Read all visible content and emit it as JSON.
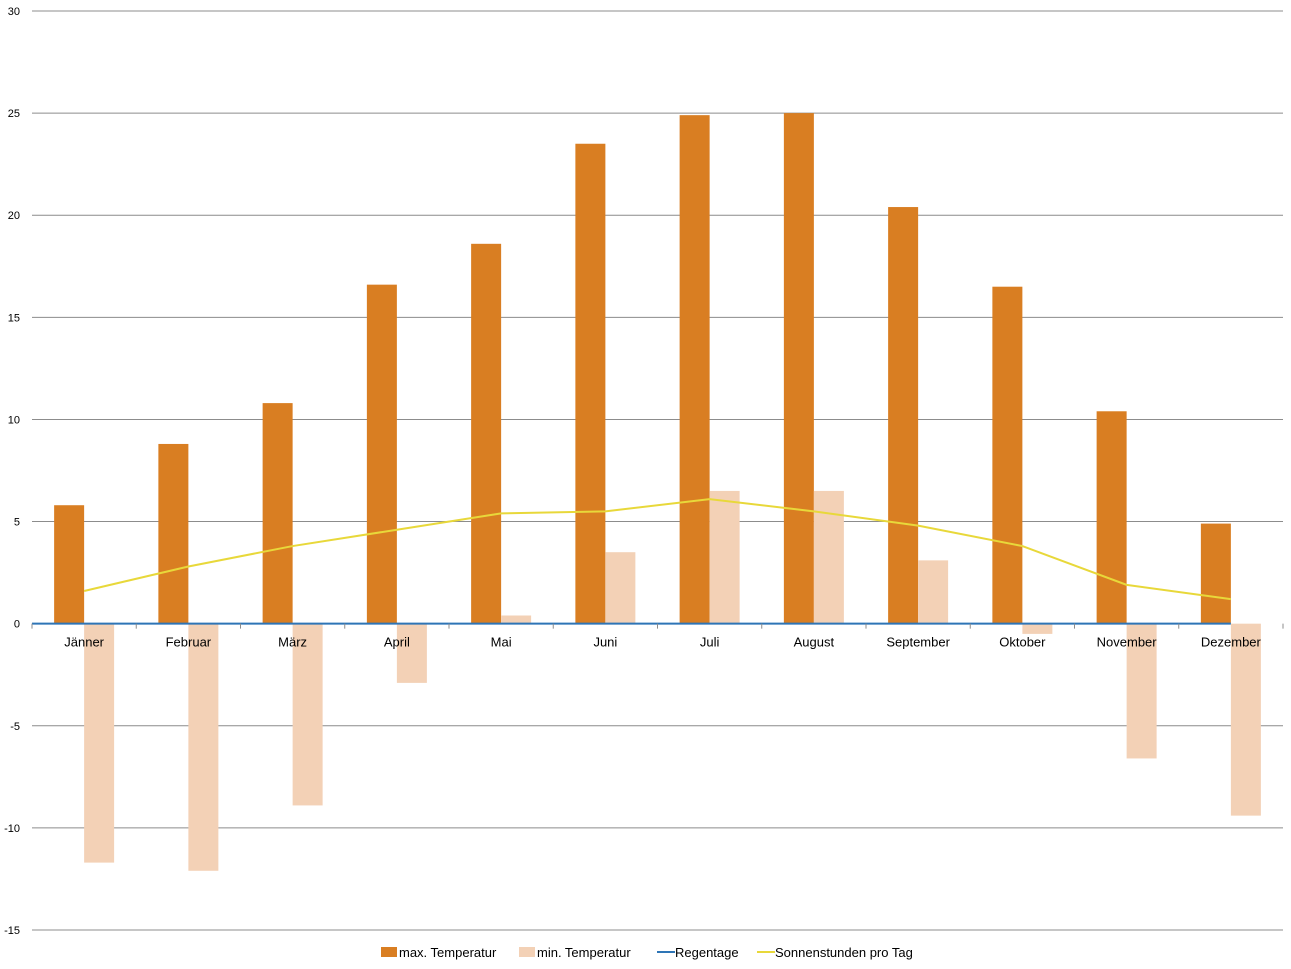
{
  "chart_data": {
    "type": "bar",
    "categories": [
      "Jänner",
      "Februar",
      "März",
      "April",
      "Mai",
      "Juni",
      "Juli",
      "August",
      "September",
      "Oktober",
      "November",
      "Dezember"
    ],
    "series": [
      {
        "name": "max. Temperatur",
        "kind": "bar",
        "color": "#d97e22",
        "values": [
          5.8,
          8.8,
          10.8,
          16.6,
          18.6,
          23.5,
          24.9,
          25.0,
          20.4,
          16.5,
          10.4,
          4.9
        ]
      },
      {
        "name": "min. Temperatur",
        "kind": "bar",
        "color": "#f3d1b6",
        "values": [
          -11.7,
          -12.1,
          -8.9,
          -2.9,
          0.4,
          3.5,
          6.5,
          6.5,
          3.1,
          -0.5,
          -6.6,
          -9.4
        ]
      },
      {
        "name": "Regentage",
        "kind": "line",
        "color": "#2e75b6",
        "values": [
          0,
          0,
          0,
          0,
          0,
          0,
          0,
          0,
          0,
          0,
          0,
          0
        ]
      },
      {
        "name": "Sonnenstunden pro Tag",
        "kind": "line",
        "color": "#e8d83a",
        "values": [
          1.6,
          2.8,
          3.8,
          4.6,
          5.4,
          5.5,
          6.1,
          5.5,
          4.8,
          3.8,
          1.9,
          1.2
        ]
      }
    ],
    "ylim": [
      -15,
      30
    ],
    "yticks": [
      -15,
      -10,
      -5,
      0,
      5,
      10,
      15,
      20,
      25,
      30
    ],
    "grid": true,
    "legend_position": "bottom",
    "title": "",
    "xlabel": "",
    "ylabel": ""
  }
}
